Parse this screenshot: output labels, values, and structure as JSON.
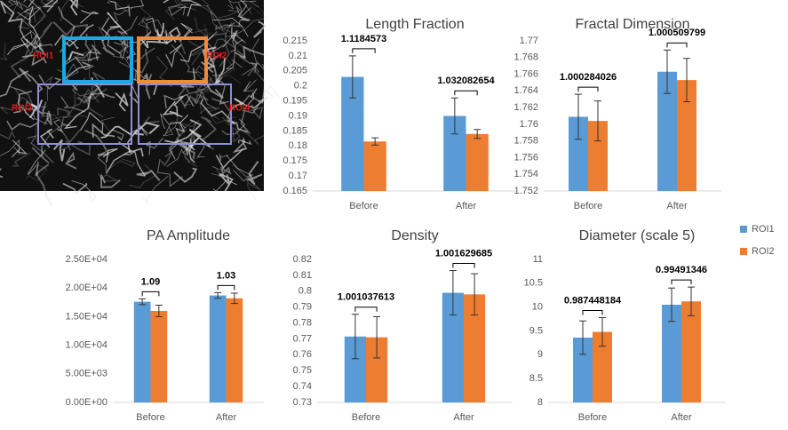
{
  "image": {
    "roi_labels": [
      "ROI1",
      "ROI2",
      "ROI3",
      "ROI4"
    ]
  },
  "chart_data": [
    {
      "type": "bar",
      "title": "Length Fraction",
      "categories": [
        "Before",
        "After"
      ],
      "series": [
        {
          "color": "#5b9bd5",
          "values": [
            0.203,
            0.19
          ],
          "errors": [
            0.007,
            0.006
          ]
        },
        {
          "color": "#ed7d31",
          "values": [
            0.1815,
            0.184
          ],
          "errors": [
            0.0012,
            0.0015
          ]
        }
      ],
      "annotations": [
        "1.1184573",
        "1.032082654"
      ],
      "ylim": [
        0.165,
        0.215
      ],
      "yticks": [
        0.165,
        0.17,
        0.175,
        0.18,
        0.185,
        0.19,
        0.195,
        0.2,
        0.205,
        0.21,
        0.215
      ],
      "grid": false
    },
    {
      "type": "bar",
      "title": "Fractal Dimension",
      "categories": [
        "Before",
        "After"
      ],
      "series": [
        {
          "color": "#5b9bd5",
          "values": [
            1.7609,
            1.7663
          ],
          "errors": [
            0.0027,
            0.0026
          ]
        },
        {
          "color": "#ed7d31",
          "values": [
            1.7604,
            1.7653
          ],
          "errors": [
            0.0024,
            0.0026
          ]
        }
      ],
      "annotations": [
        "1.000284026",
        "1.000509799"
      ],
      "ylim": [
        1.752,
        1.77
      ],
      "yticks": [
        1.752,
        1.754,
        1.756,
        1.758,
        1.76,
        1.762,
        1.764,
        1.766,
        1.768,
        1.77
      ],
      "grid": false
    },
    {
      "type": "bar",
      "title": "PA Amplitude",
      "categories": [
        "Before",
        "After"
      ],
      "series": [
        {
          "color": "#5b9bd5",
          "values": [
            17600,
            18700
          ],
          "errors": [
            500,
            500
          ]
        },
        {
          "color": "#ed7d31",
          "values": [
            16000,
            18200
          ],
          "errors": [
            1000,
            900
          ]
        }
      ],
      "annotations": [
        "1.09",
        "1.03"
      ],
      "ylim": [
        0,
        25000
      ],
      "yticks": [
        {
          "value": 0,
          "label": "0.00E+00"
        },
        {
          "value": 5000,
          "label": "5.00E+03"
        },
        {
          "value": 10000,
          "label": "1.00E+04"
        },
        {
          "value": 15000,
          "label": "1.50E+04"
        },
        {
          "value": 20000,
          "label": "2.00E+04"
        },
        {
          "value": 25000,
          "label": "2.50E+04"
        }
      ],
      "grid": false
    },
    {
      "type": "bar",
      "title": "Density",
      "categories": [
        "Before",
        "After"
      ],
      "series": [
        {
          "color": "#5b9bd5",
          "values": [
            0.7715,
            0.799
          ],
          "errors": [
            0.014,
            0.014
          ]
        },
        {
          "color": "#ed7d31",
          "values": [
            0.771,
            0.798
          ],
          "errors": [
            0.013,
            0.013
          ]
        }
      ],
      "annotations": [
        "1.001037613",
        "1.001629685"
      ],
      "ylim": [
        0.73,
        0.82
      ],
      "yticks": [
        0.73,
        0.74,
        0.75,
        0.76,
        0.77,
        0.78,
        0.79,
        0.8,
        0.81,
        0.82
      ],
      "grid": false
    },
    {
      "type": "bar",
      "title": "Diameter (scale 5)",
      "categories": [
        "Before",
        "After"
      ],
      "series": [
        {
          "name": "ROI1",
          "color": "#5b9bd5",
          "values": [
            9.36,
            10.05
          ],
          "errors": [
            0.35,
            0.35
          ]
        },
        {
          "name": "ROI2",
          "color": "#ed7d31",
          "values": [
            9.48,
            10.12
          ],
          "errors": [
            0.3,
            0.3
          ]
        }
      ],
      "annotations": [
        "0.987448184",
        "0.99491346"
      ],
      "ylim": [
        8,
        11
      ],
      "yticks": [
        8,
        8.5,
        9,
        9.5,
        10,
        10.5,
        11
      ],
      "grid": false
    }
  ]
}
